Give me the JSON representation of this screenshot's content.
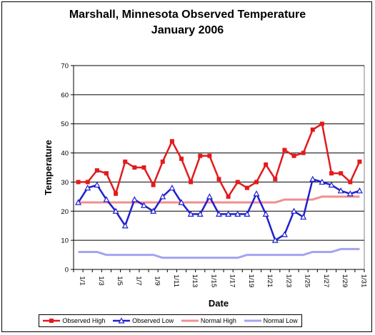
{
  "chart_data": {
    "type": "line",
    "title_line1": "Marshall, Minnesota Observed Temperature",
    "title_line2": "January 2006",
    "xlabel": "Date",
    "ylabel": "Temperature",
    "ylim": [
      0,
      70
    ],
    "yticks": [
      0,
      10,
      20,
      30,
      40,
      50,
      60,
      70
    ],
    "grid": "horizontal",
    "legend_position": "bottom",
    "categories": [
      "1/1",
      "1/2",
      "1/3",
      "1/4",
      "1/5",
      "1/6",
      "1/7",
      "1/8",
      "1/9",
      "1/10",
      "1/11",
      "1/12",
      "1/13",
      "1/14",
      "1/15",
      "1/16",
      "1/17",
      "1/18",
      "1/19",
      "1/20",
      "1/21",
      "1/22",
      "1/23",
      "1/24",
      "1/25",
      "1/26",
      "1/27",
      "1/28",
      "1/29",
      "1/30",
      "1/31"
    ],
    "tick_labels": [
      "1/1",
      "1/3",
      "1/5",
      "1/7",
      "1/9",
      "1/11",
      "1/13",
      "1/15",
      "1/17",
      "1/19",
      "1/21",
      "1/23",
      "1/25",
      "1/27",
      "1/29",
      "1/31"
    ],
    "series": [
      {
        "name": "Observed High",
        "color": "#e31a1c",
        "marker": "square",
        "values": [
          30,
          30,
          34,
          33,
          26,
          37,
          35,
          35,
          29,
          37,
          44,
          38,
          30,
          39,
          39,
          31,
          25,
          30,
          28,
          30,
          36,
          31,
          41,
          39,
          40,
          48,
          50,
          33,
          33,
          30,
          37
        ]
      },
      {
        "name": "Observed Low",
        "color": "#1f1fcf",
        "marker": "triangle",
        "values": [
          23,
          28,
          29,
          24,
          20,
          15,
          24,
          22,
          20,
          25,
          28,
          23,
          19,
          19,
          25,
          19,
          19,
          19,
          19,
          26,
          19,
          10,
          12,
          20,
          18,
          31,
          30,
          29,
          27,
          26,
          27
        ]
      },
      {
        "name": "Normal High",
        "color": "#f08f8f",
        "marker": "none",
        "values": [
          23,
          23,
          23,
          23,
          23,
          23,
          23,
          23,
          23,
          23,
          23,
          23,
          23,
          23,
          23,
          23,
          23,
          23,
          23,
          23,
          23,
          23,
          24,
          24,
          24,
          24,
          25,
          25,
          25,
          25,
          25
        ]
      },
      {
        "name": "Normal Low",
        "color": "#a4a4f0",
        "marker": "none",
        "values": [
          6,
          6,
          6,
          5,
          5,
          5,
          5,
          5,
          5,
          4,
          4,
          4,
          4,
          4,
          4,
          4,
          4,
          4,
          5,
          5,
          5,
          5,
          5,
          5,
          5,
          6,
          6,
          6,
          7,
          7,
          7
        ]
      }
    ]
  }
}
